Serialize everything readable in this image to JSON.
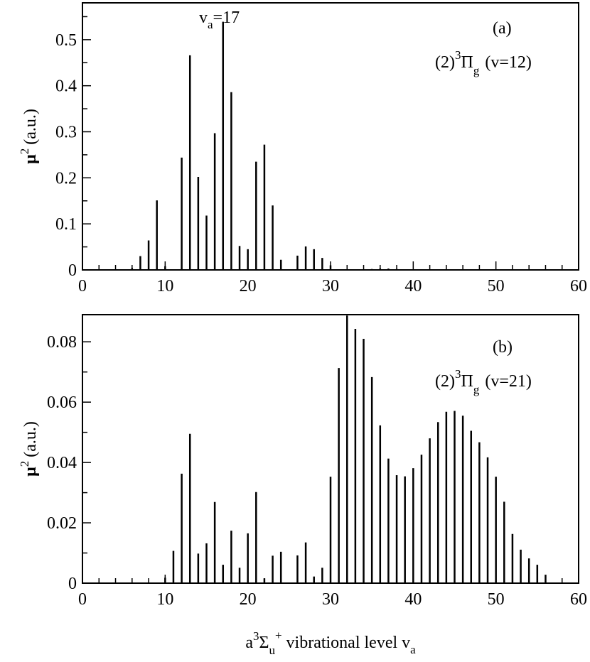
{
  "chart_data": [
    {
      "type": "bar",
      "panel_label": "(a)",
      "state": {
        "base": "(2)",
        "sup": "3",
        "term": "Π",
        "sub": "g",
        "vib": "(v=12)"
      },
      "peak_annotation": {
        "prefix": "v",
        "sub": "a",
        "suffix": "=17"
      },
      "ylabel": {
        "mu": "μ",
        "sup": "2",
        "units": "(a.u.)"
      },
      "xlim": [
        0,
        60
      ],
      "ylim": [
        0,
        0.58
      ],
      "xticks": [
        "0",
        "10",
        "20",
        "30",
        "40",
        "50",
        "60"
      ],
      "yticks": [
        {
          "value": 0,
          "label": "0"
        },
        {
          "value": 0.1,
          "label": "0.1"
        },
        {
          "value": 0.2,
          "label": "0.2"
        },
        {
          "value": 0.3,
          "label": "0.3"
        },
        {
          "value": 0.4,
          "label": "0.4"
        },
        {
          "value": 0.5,
          "label": "0.5"
        }
      ],
      "x": [
        6,
        7,
        8,
        9,
        10,
        12,
        13,
        14,
        15,
        16,
        17,
        18,
        19,
        20,
        21,
        22,
        23,
        24,
        26,
        27,
        28,
        29,
        30,
        35,
        36,
        37,
        38
      ],
      "values": [
        0.004,
        0.03,
        0.064,
        0.151,
        0.008,
        0.244,
        0.466,
        0.202,
        0.118,
        0.297,
        0.539,
        0.386,
        0.052,
        0.045,
        0.235,
        0.272,
        0.14,
        0.022,
        0.031,
        0.051,
        0.045,
        0.026,
        0.01,
        0.002,
        0.003,
        0.003,
        0.002
      ]
    },
    {
      "type": "bar",
      "panel_label": "(b)",
      "state": {
        "base": "(2)",
        "sup": "3",
        "term": "Π",
        "sub": "g",
        "vib": "(v=21)"
      },
      "ylabel": {
        "mu": "μ",
        "sup": "2",
        "units": "(a.u.)"
      },
      "xlabel": {
        "a": "a",
        "sup": "3",
        "sigma": "Σ",
        "sub": "u",
        "plus": "+",
        "rest": "vibrational level v",
        "sub2": "a"
      },
      "xlim": [
        0,
        60
      ],
      "ylim": [
        0,
        0.089
      ],
      "xticks": [
        "0",
        "10",
        "20",
        "30",
        "40",
        "50",
        "60"
      ],
      "yticks": [
        {
          "value": 0,
          "label": "0"
        },
        {
          "value": 0.02,
          "label": "0.02"
        },
        {
          "value": 0.04,
          "label": "0.04"
        },
        {
          "value": 0.06,
          "label": "0.06"
        },
        {
          "value": 0.08,
          "label": "0.08"
        }
      ],
      "x": [
        10,
        11,
        12,
        13,
        14,
        15,
        16,
        17,
        18,
        19,
        20,
        21,
        22,
        23,
        24,
        26,
        27,
        28,
        29,
        30,
        31,
        32,
        33,
        34,
        35,
        36,
        37,
        38,
        39,
        40,
        41,
        42,
        43,
        44,
        45,
        46,
        47,
        48,
        49,
        50,
        51,
        52,
        53,
        54,
        55,
        56
      ],
      "values": [
        0.0018,
        0.0107,
        0.0363,
        0.0495,
        0.0098,
        0.0132,
        0.0269,
        0.0061,
        0.0174,
        0.0051,
        0.0165,
        0.0302,
        0.0016,
        0.0091,
        0.0104,
        0.0092,
        0.0135,
        0.0022,
        0.0051,
        0.0353,
        0.0713,
        0.0887,
        0.0843,
        0.081,
        0.0683,
        0.0523,
        0.0413,
        0.0358,
        0.0354,
        0.0381,
        0.0426,
        0.048,
        0.0534,
        0.0568,
        0.0571,
        0.0555,
        0.0505,
        0.0467,
        0.0417,
        0.0353,
        0.027,
        0.0163,
        0.0111,
        0.0082,
        0.0061,
        0.0028
      ]
    }
  ]
}
